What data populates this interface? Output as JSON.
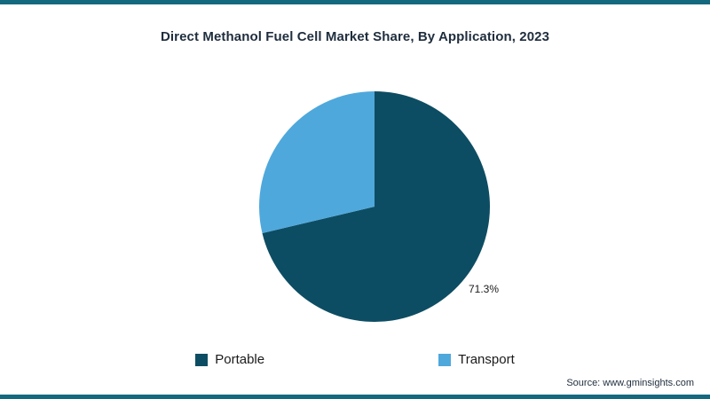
{
  "page": {
    "source": "Source: www.gminsights.com"
  },
  "chart_data": {
    "type": "pie",
    "title": "Direct Methanol Fuel Cell Market Share, By Application, 2023",
    "series": [
      {
        "name": "Portable",
        "value": 71.3,
        "color": "#0d4d63"
      },
      {
        "name": "Transport",
        "value": 28.7,
        "color": "#4fa8dc"
      }
    ],
    "value_labels": [
      "71.3%"
    ],
    "start_angle_deg": 0,
    "direction": "clockwise",
    "legend_position": "bottom",
    "colors": {
      "frame": "#15697e"
    }
  }
}
